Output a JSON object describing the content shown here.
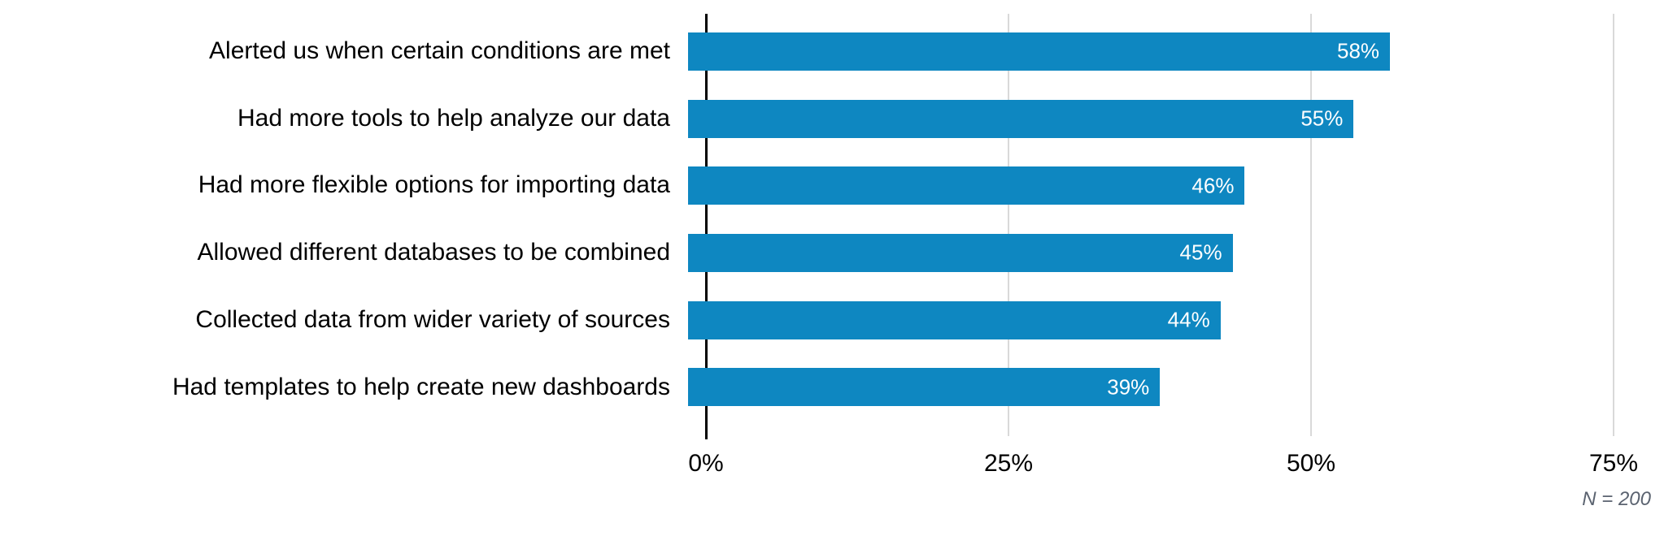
{
  "chart_data": {
    "type": "bar",
    "orientation": "horizontal",
    "title": "",
    "xlabel": "",
    "ylabel": "",
    "categories": [
      "Alerted us when certain conditions are met",
      "Had more tools to help analyze our data",
      "Had more flexible options for importing data",
      "Allowed different databases to be combined",
      "Collected data from wider variety of sources",
      "Had templates to help create new dashboards"
    ],
    "values": [
      58,
      55,
      46,
      45,
      44,
      39
    ],
    "value_labels": [
      "58%",
      "55%",
      "46%",
      "45%",
      "44%",
      "39%"
    ],
    "x_ticks": [
      {
        "value": 0,
        "label": "0%"
      },
      {
        "value": 25,
        "label": "25%"
      },
      {
        "value": 50,
        "label": "50%"
      },
      {
        "value": 75,
        "label": "75%"
      }
    ],
    "xlim": [
      0,
      79.2
    ],
    "grid": true,
    "legend": "none",
    "note": "N = 200",
    "colors": {
      "bar": "#0e87c1",
      "value_label": "#ffffff",
      "category_label": "#000000",
      "tick_label": "#000000",
      "gridline": "#d9d9d9",
      "axis_line": "#000000",
      "note": "#5b6370",
      "background": "#ffffff"
    }
  }
}
